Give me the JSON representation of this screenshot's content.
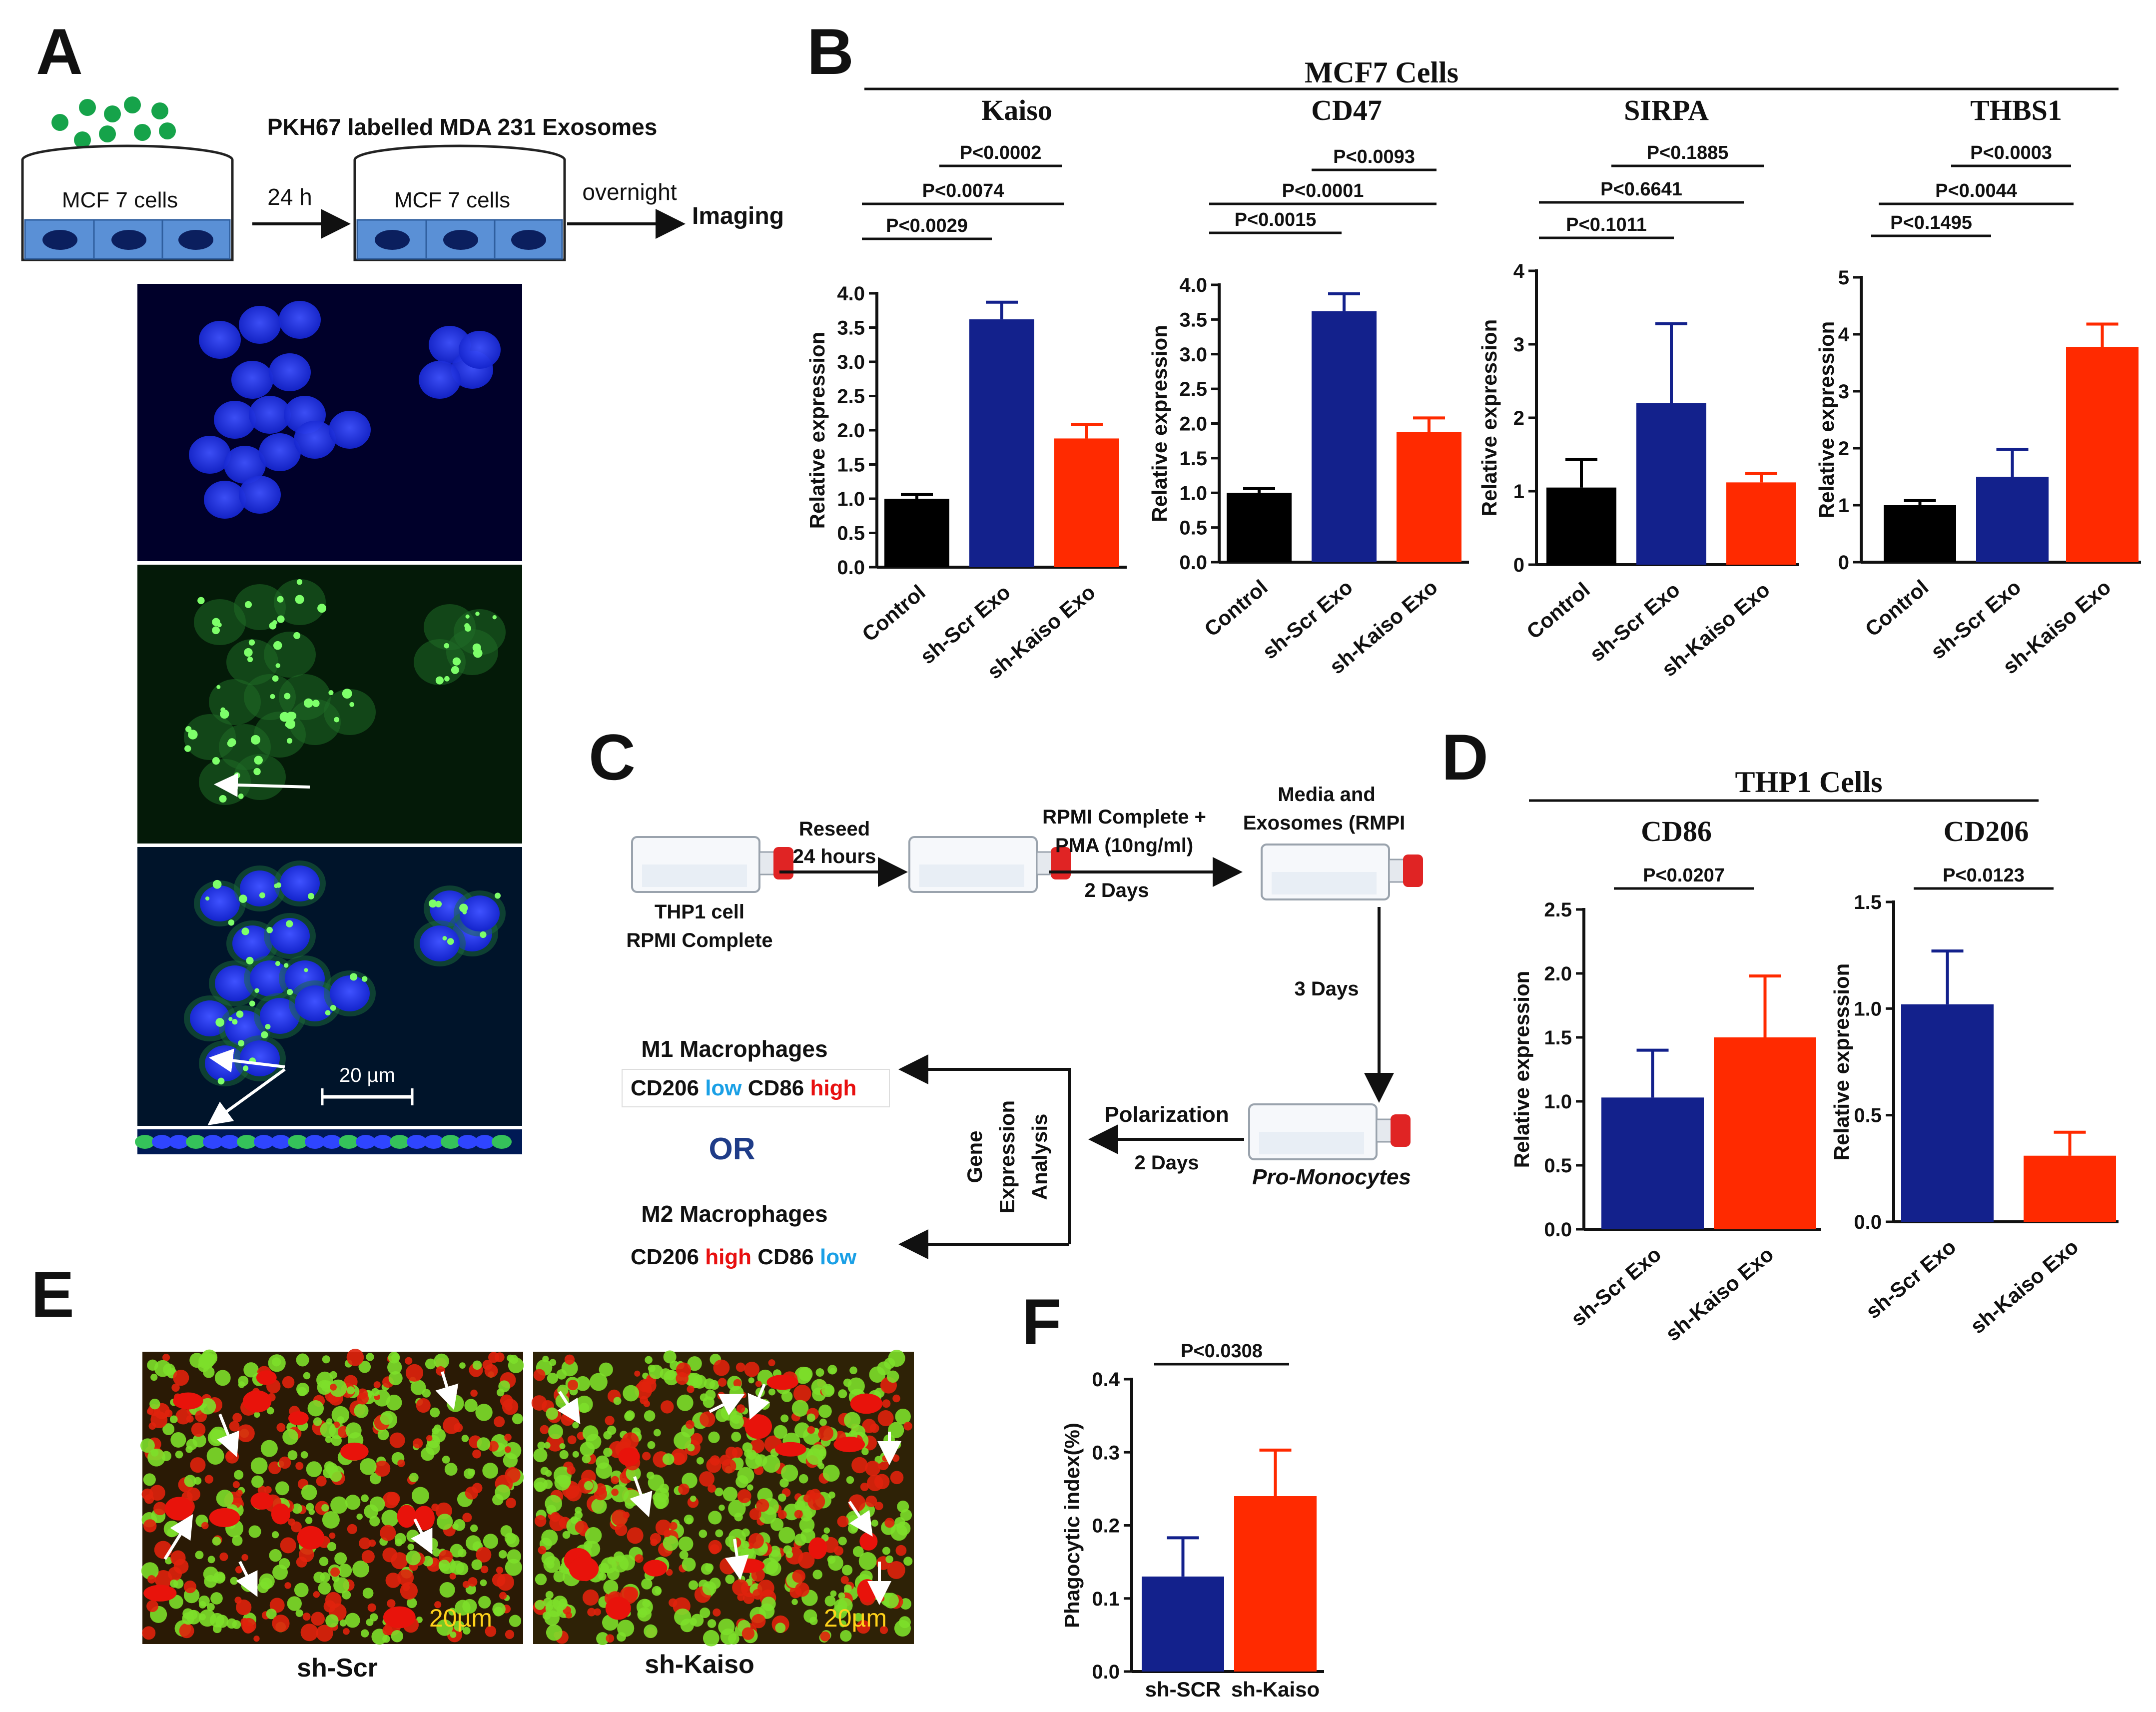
{
  "panel_letters": {
    "A": "A",
    "B": "B",
    "C": "C",
    "D": "D",
    "E": "E",
    "F": "F"
  },
  "panelA": {
    "title": "PKH67 labelled MDA 231 Exosomes",
    "dish1": "MCF 7 cells",
    "dish2": "MCF 7 cells",
    "arrow1": "24 h",
    "arrow2": "overnight",
    "end": "Imaging",
    "scale_bar": "20 µm"
  },
  "panelB": {
    "group_title": "MCF7 Cells"
  },
  "panelC": {
    "step1": "Reseed",
    "step1b": "24 hours",
    "cell1": "THP1 cell",
    "cell1b": "RPMI Complete",
    "step2": "RPMI Complete +",
    "step2b": "PMA (10ng/ml)",
    "step2c": "2 Days",
    "step3": "Media and",
    "step3b": "Exosomes  (RMPI",
    "step4": "3 Days",
    "polar": "Polarization",
    "polar_days": "2 Days",
    "promono": "Pro-Monocytes",
    "gene1": "Gene",
    "gene2": "Expression",
    "gene3": "Analysis",
    "m1": "M1 Macrophages",
    "m1_a": "CD206 ",
    "m1_b": "low",
    "m1_c": " CD86 ",
    "m1_d": "high",
    "or": "OR",
    "m2": "M2 Macrophages",
    "m2_a": "CD206 ",
    "m2_b": "high",
    "m2_c": " CD86 ",
    "m2_d": "low"
  },
  "panelD": {
    "group_title": "THP1 Cells"
  },
  "panelE": {
    "label1": "sh-Scr",
    "label2": "sh-Kaiso",
    "scale1": "20µm",
    "scale2": "20µm"
  },
  "colors": {
    "control": "#000000",
    "scr": "#13218c",
    "kaiso": "#ff2a00",
    "dapi": "#1a2bff",
    "green": "#3fd23f"
  },
  "chart_data": [
    {
      "id": "kaiso",
      "type": "bar",
      "title": "Kaiso",
      "ylabel": "Relative expression",
      "categories": [
        "Control",
        "sh-Scr Exo",
        "sh-Kaiso Exo"
      ],
      "values": [
        1.0,
        3.62,
        1.88
      ],
      "errors": [
        0.06,
        0.25,
        0.2
      ],
      "ylim": [
        0,
        4
      ],
      "yticks": [
        "0.0",
        "0.5",
        "1.0",
        "1.5",
        "2.0",
        "2.5",
        "3.0",
        "3.5",
        "4.0"
      ],
      "pvalues": [
        "P<0.0002",
        "P<0.0074",
        "P<0.0029"
      ]
    },
    {
      "id": "cd47",
      "type": "bar",
      "title": "CD47",
      "ylabel": "Relative expression",
      "categories": [
        "Control",
        "sh-Scr Exo",
        "sh-Kaiso Exo"
      ],
      "values": [
        1.0,
        3.62,
        1.88
      ],
      "errors": [
        0.06,
        0.25,
        0.2
      ],
      "ylim": [
        0,
        4
      ],
      "yticks": [
        "0.0",
        "0.5",
        "1.0",
        "1.5",
        "2.0",
        "2.5",
        "3.0",
        "3.5",
        "4.0"
      ],
      "pvalues": [
        "P<0.0093",
        "P<0.0001",
        "P<0.0015"
      ]
    },
    {
      "id": "sirpa",
      "type": "bar",
      "title": "SIRPA",
      "ylabel": "Relative expression",
      "categories": [
        "Control",
        "sh-Scr Exo",
        "sh-Kaiso Exo"
      ],
      "values": [
        1.05,
        2.2,
        1.12
      ],
      "errors": [
        0.38,
        1.08,
        0.12
      ],
      "ylim": [
        0,
        4
      ],
      "yticks": [
        "0",
        "1",
        "2",
        "3",
        "4"
      ],
      "pvalues": [
        "P<0.1885",
        "P<0.6641",
        "P<0.1011"
      ]
    },
    {
      "id": "thbs1",
      "type": "bar",
      "title": "THBS1",
      "ylabel": "Relative expression",
      "categories": [
        "Control",
        "sh-Scr Exo",
        "sh-Kaiso Exo"
      ],
      "values": [
        1.0,
        1.5,
        3.78
      ],
      "errors": [
        0.08,
        0.48,
        0.4
      ],
      "ylim": [
        0,
        5
      ],
      "yticks": [
        "0",
        "1",
        "2",
        "3",
        "4",
        "5"
      ],
      "pvalues": [
        "P<0.0003",
        "P<0.0044",
        "P<0.1495"
      ]
    },
    {
      "id": "cd86",
      "type": "bar",
      "title": "CD86",
      "ylabel": "Relative expression",
      "categories": [
        "sh-Scr Exo",
        "sh-Kaiso Exo"
      ],
      "values": [
        1.03,
        1.5
      ],
      "errors": [
        0.37,
        0.48
      ],
      "ylim": [
        0,
        2.5
      ],
      "yticks": [
        "0.0",
        "0.5",
        "1.0",
        "1.5",
        "2.0",
        "2.5"
      ],
      "pvalues": [
        "P<0.0207"
      ]
    },
    {
      "id": "cd206",
      "type": "bar",
      "title": "CD206",
      "ylabel": "Relative expression",
      "categories": [
        "sh-Scr Exo",
        "sh-Kaiso Exo"
      ],
      "values": [
        1.02,
        0.31
      ],
      "errors": [
        0.25,
        0.11
      ],
      "ylim": [
        0,
        1.5
      ],
      "yticks": [
        "0.0",
        "0.5",
        "1.0",
        "1.5"
      ],
      "pvalues": [
        "P<0.0123"
      ]
    },
    {
      "id": "phago",
      "type": "bar",
      "title": "",
      "ylabel": "Phagocytic index(%)",
      "categories": [
        "sh-SCR",
        "sh-Kaiso"
      ],
      "values": [
        0.13,
        0.24
      ],
      "errors": [
        0.053,
        0.063
      ],
      "ylim": [
        0,
        0.4
      ],
      "yticks": [
        "0.0",
        "0.1",
        "0.2",
        "0.3",
        "0.4"
      ],
      "pvalues": [
        "P<0.0308"
      ]
    }
  ]
}
